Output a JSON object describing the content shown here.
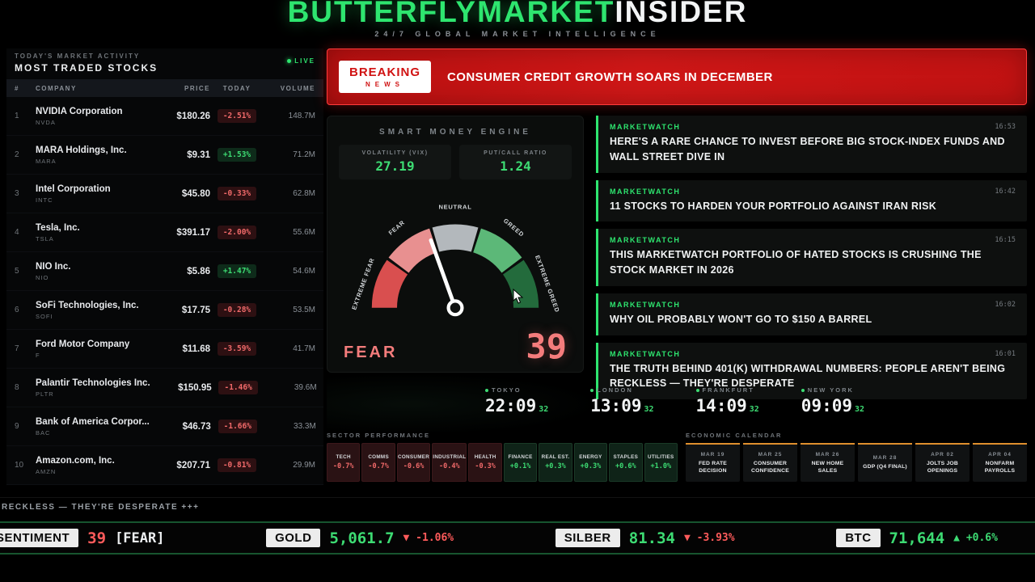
{
  "colors": {
    "accent_green": "#2ee56f",
    "positive_green": "#3ddc73",
    "negative_red": "#f16a6a",
    "breaking_red": "#c81414",
    "calendar_amber": "#df8f2d",
    "fear_salmon": "#f47c7c"
  },
  "header": {
    "title_green": "BUTTERFLYMARKET",
    "title_white": "INSIDER",
    "subtitle": "24/7 GLOBAL MARKET INTELLIGENCE"
  },
  "stocks_panel": {
    "kicker": "TODAY'S MARKET ACTIVITY",
    "title": "MOST TRADED STOCKS",
    "live_label": "LIVE",
    "columns": [
      "#",
      "COMPANY",
      "PRICE",
      "TODAY",
      "VOLUME"
    ],
    "rows": [
      {
        "rank": "1",
        "company": "NVIDIA Corporation",
        "ticker": "NVDA",
        "price": "$180.26",
        "change": "-2.51%",
        "dir": "down",
        "volume": "148.7M"
      },
      {
        "rank": "2",
        "company": "MARA Holdings, Inc.",
        "ticker": "MARA",
        "price": "$9.31",
        "change": "+1.53%",
        "dir": "up",
        "volume": "71.2M"
      },
      {
        "rank": "3",
        "company": "Intel Corporation",
        "ticker": "INTC",
        "price": "$45.80",
        "change": "-0.33%",
        "dir": "down",
        "volume": "62.8M"
      },
      {
        "rank": "4",
        "company": "Tesla, Inc.",
        "ticker": "TSLA",
        "price": "$391.17",
        "change": "-2.00%",
        "dir": "down",
        "volume": "55.6M"
      },
      {
        "rank": "5",
        "company": "NIO Inc.",
        "ticker": "NIO",
        "price": "$5.86",
        "change": "+1.47%",
        "dir": "up",
        "volume": "54.6M"
      },
      {
        "rank": "6",
        "company": "SoFi Technologies, Inc.",
        "ticker": "SOFI",
        "price": "$17.75",
        "change": "-0.28%",
        "dir": "down",
        "volume": "53.5M"
      },
      {
        "rank": "7",
        "company": "Ford Motor Company",
        "ticker": "F",
        "price": "$11.68",
        "change": "-3.59%",
        "dir": "down",
        "volume": "41.7M"
      },
      {
        "rank": "8",
        "company": "Palantir Technologies Inc.",
        "ticker": "PLTR",
        "price": "$150.95",
        "change": "-1.46%",
        "dir": "down",
        "volume": "39.6M"
      },
      {
        "rank": "9",
        "company": "Bank of America Corpor...",
        "ticker": "BAC",
        "price": "$46.73",
        "change": "-1.66%",
        "dir": "down",
        "volume": "33.3M"
      },
      {
        "rank": "10",
        "company": "Amazon.com, Inc.",
        "ticker": "AMZN",
        "price": "$207.71",
        "change": "-0.81%",
        "dir": "down",
        "volume": "29.9M"
      }
    ]
  },
  "breaking": {
    "badge_line1": "BREAKING",
    "badge_line2": "NEWS",
    "headline": "CONSUMER CREDIT GROWTH SOARS IN DECEMBER"
  },
  "smart_money": {
    "title": "SMART MONEY ENGINE",
    "metrics": [
      {
        "label": "VOLATILITY (VIX)",
        "value": "27.19"
      },
      {
        "label": "PUT/CALL RATIO",
        "value": "1.24"
      }
    ],
    "gauge": {
      "labels": [
        "EXTREME FEAR",
        "FEAR",
        "NEUTRAL",
        "GREED",
        "EXTREME GREED"
      ],
      "sentiment": "FEAR",
      "value": "39"
    }
  },
  "news": {
    "items": [
      {
        "source": "MARKETWATCH",
        "time": "16:53",
        "headline": "HERE'S A RARE CHANCE TO INVEST BEFORE BIG STOCK-INDEX FUNDS AND WALL STREET DIVE IN"
      },
      {
        "source": "MARKETWATCH",
        "time": "16:42",
        "headline": "11 STOCKS TO HARDEN YOUR PORTFOLIO AGAINST IRAN RISK"
      },
      {
        "source": "MARKETWATCH",
        "time": "16:15",
        "headline": "THIS MARKETWATCH PORTFOLIO OF HATED STOCKS IS CRUSHING THE STOCK MARKET IN 2026"
      },
      {
        "source": "MARKETWATCH",
        "time": "16:02",
        "headline": "WHY OIL PROBABLY WON'T GO TO $150 A BARREL"
      },
      {
        "source": "MARKETWATCH",
        "time": "16:01",
        "headline": "THE TRUTH BEHIND 401(K) WITHDRAWAL NUMBERS: PEOPLE AREN'T BEING RECKLESS — THEY'RE DESPERATE"
      }
    ]
  },
  "clocks": [
    {
      "city": "TOKYO",
      "time": "22:09",
      "seconds": "32"
    },
    {
      "city": "LONDON",
      "time": "13:09",
      "seconds": "32"
    },
    {
      "city": "FRANKFURT",
      "time": "14:09",
      "seconds": "32"
    },
    {
      "city": "NEW YORK",
      "time": "09:09",
      "seconds": "32"
    }
  ],
  "sectors": {
    "title": "SECTOR PERFORMANCE",
    "items": [
      {
        "name": "TECH",
        "change": "-0.7%",
        "dir": "down"
      },
      {
        "name": "COMMS",
        "change": "-0.7%",
        "dir": "down"
      },
      {
        "name": "CONSUMER",
        "change": "-0.6%",
        "dir": "down"
      },
      {
        "name": "INDUSTRIAL",
        "change": "-0.4%",
        "dir": "down"
      },
      {
        "name": "HEALTH",
        "change": "-0.3%",
        "dir": "down"
      },
      {
        "name": "FINANCE",
        "change": "+0.1%",
        "dir": "up"
      },
      {
        "name": "REAL EST.",
        "change": "+0.3%",
        "dir": "up"
      },
      {
        "name": "ENERGY",
        "change": "+0.3%",
        "dir": "up"
      },
      {
        "name": "STAPLES",
        "change": "+0.6%",
        "dir": "up"
      },
      {
        "name": "UTILITIES",
        "change": "+1.0%",
        "dir": "up"
      }
    ]
  },
  "calendar": {
    "title": "ECONOMIC CALENDAR",
    "items": [
      {
        "date": "MAR 19",
        "event": "FED RATE DECISION"
      },
      {
        "date": "MAR 25",
        "event": "CONSUMER CONFIDENCE"
      },
      {
        "date": "MAR 26",
        "event": "NEW HOME SALES"
      },
      {
        "date": "MAR 28",
        "event": "GDP (Q4 FINAL)"
      },
      {
        "date": "APR 02",
        "event": "JOLTS JOB OPENINGS"
      },
      {
        "date": "APR 04",
        "event": "NONFARM PAYROLLS"
      }
    ]
  },
  "ticker_scroll": "RECKLESS — THEY'RE DESPERATE +++",
  "bottom_bar": {
    "sentiment": {
      "label": "SENTIMENT",
      "value": "39",
      "mood": "[FEAR]"
    },
    "gold": {
      "label": "GOLD",
      "value": "5,061.7",
      "arrow": "▼",
      "change": "-1.06%"
    },
    "silver": {
      "label": "SILBER",
      "value": "81.34",
      "arrow": "▼",
      "change": "-3.93%"
    },
    "btc": {
      "label": "BTC",
      "value": "71,644",
      "arrow": "▲",
      "change": "+0.6%"
    }
  }
}
